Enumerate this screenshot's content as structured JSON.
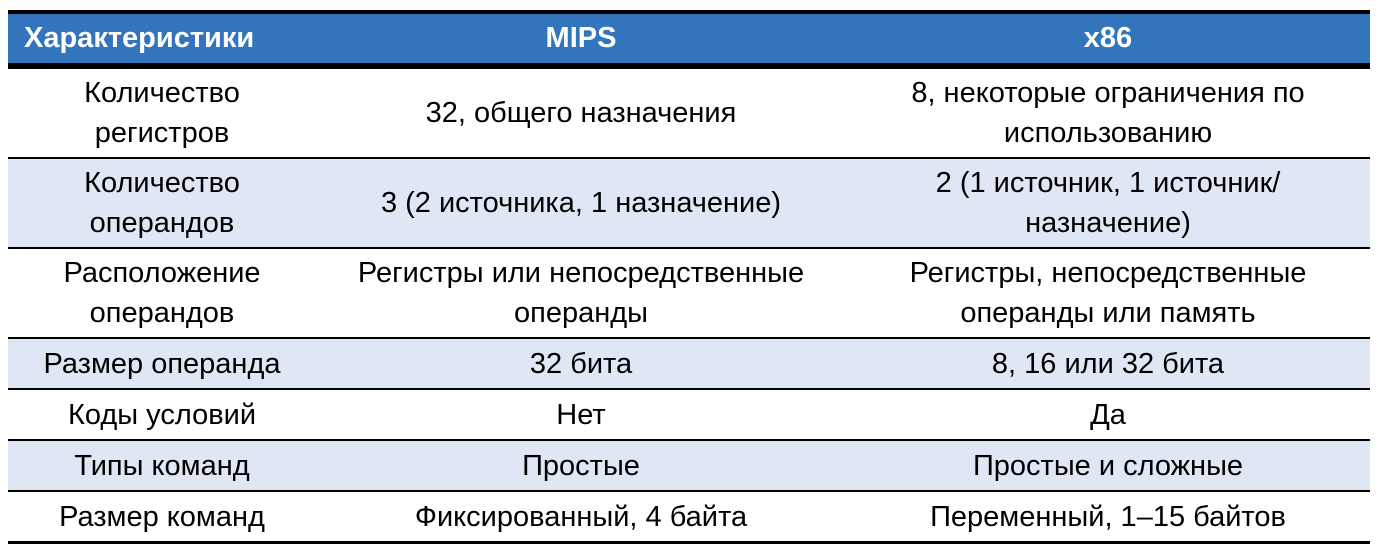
{
  "headers": [
    "Характеристики",
    "MIPS",
    "x86"
  ],
  "rows": [
    [
      "Количество регистров",
      "32, общего назначения",
      "8, некоторые ограничения по использованию"
    ],
    [
      "Количество операндов",
      "3 (2 источника, 1 назначение)",
      "2 (1 источник, 1 источник/назначение)"
    ],
    [
      "Расположение операндов",
      "Регистры или непосредственные операнды",
      "Регистры, непосредственные операнды или память"
    ],
    [
      "Размер операнда",
      "32 бита",
      "8, 16 или 32 бита"
    ],
    [
      "Коды условий",
      "Нет",
      "Да"
    ],
    [
      "Типы команд",
      "Простые",
      "Простые и сложные"
    ],
    [
      "Размер команд",
      "Фиксированный, 4 байта",
      "Переменный, 1–15 байтов"
    ]
  ],
  "colors": {
    "header": "#3275bc",
    "shade": "#dfe7f4"
  }
}
